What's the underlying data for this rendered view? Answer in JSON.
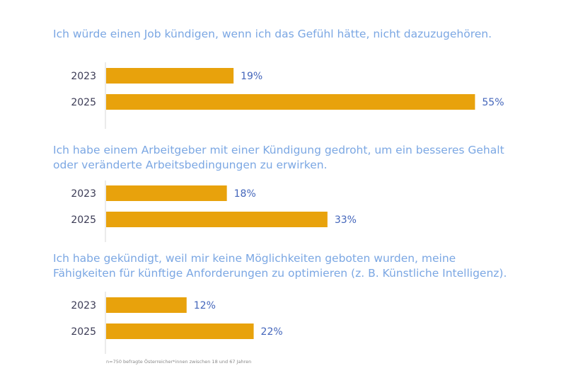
{
  "chart_data": [
    {
      "type": "bar",
      "orientation": "horizontal",
      "title": [
        "Ich würde einen Job kündigen, wenn ich das Gefühl hätte, nicht dazuzugehören."
      ],
      "categories": [
        "2023",
        "2025"
      ],
      "values": [
        19,
        55
      ],
      "value_labels": [
        "19%",
        "55%"
      ],
      "xlim": [
        0,
        60
      ],
      "color": "#e8a20c"
    },
    {
      "type": "bar",
      "orientation": "horizontal",
      "title": [
        "Ich habe einem Arbeitgeber mit einer Kündigung gedroht, um ein besseres Gehalt",
        "oder veränderte Arbeitsbedingungen zu erwirken."
      ],
      "categories": [
        "2023",
        "2025"
      ],
      "values": [
        18,
        33
      ],
      "value_labels": [
        "18%",
        "33%"
      ],
      "xlim": [
        0,
        60
      ],
      "color": "#e8a20c"
    },
    {
      "type": "bar",
      "orientation": "horizontal",
      "title": [
        "Ich habe gekündigt, weil mir keine Möglichkeiten geboten wurden, meine",
        "Fähigkeiten für künftige Anforderungen zu optimieren (z. B. Künstliche Intelligenz)."
      ],
      "categories": [
        "2023",
        "2025"
      ],
      "values": [
        12,
        22
      ],
      "value_labels": [
        "12%",
        "22%"
      ],
      "xlim": [
        0,
        60
      ],
      "color": "#e8a20c"
    }
  ],
  "footnote": "n=750 befragte Österreicher*innen zwischen 18 und 67 Jahren"
}
